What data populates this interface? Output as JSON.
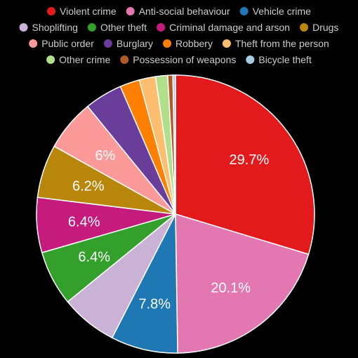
{
  "chart_data": {
    "type": "pie",
    "title": "",
    "legend_position": "top",
    "slices": [
      {
        "name": "Violent crime",
        "value": 29.7,
        "color": "#e31a1c",
        "label": "29.7%"
      },
      {
        "name": "Anti-social behaviour",
        "value": 20.1,
        "color": "#e377b1",
        "label": "20.1%"
      },
      {
        "name": "Vehicle crime",
        "value": 7.8,
        "color": "#1f78b4",
        "label": "7.8%"
      },
      {
        "name": "Shoplifting",
        "value": 6.6,
        "color": "#cab2d6",
        "label": ""
      },
      {
        "name": "Other theft",
        "value": 6.4,
        "color": "#33a02c",
        "label": "6.4%"
      },
      {
        "name": "Criminal damage and arson",
        "value": 6.4,
        "color": "#c51b7d",
        "label": "6.4%"
      },
      {
        "name": "Drugs",
        "value": 6.2,
        "color": "#b8860b",
        "label": "6.2%"
      },
      {
        "name": "Public order",
        "value": 6.0,
        "color": "#fb9a99",
        "label": "6%"
      },
      {
        "name": "Burglary",
        "value": 4.4,
        "color": "#6a3d9a",
        "label": ""
      },
      {
        "name": "Robbery",
        "value": 2.3,
        "color": "#ff7f00",
        "label": ""
      },
      {
        "name": "Theft from the person",
        "value": 1.9,
        "color": "#fdbf6f",
        "label": ""
      },
      {
        "name": "Other crime",
        "value": 1.4,
        "color": "#b2df8a",
        "label": ""
      },
      {
        "name": "Possession of weapons",
        "value": 0.6,
        "color": "#b15928",
        "label": ""
      },
      {
        "name": "Bicycle theft",
        "value": 0.3,
        "color": "#a6cee3",
        "label": ""
      }
    ]
  }
}
